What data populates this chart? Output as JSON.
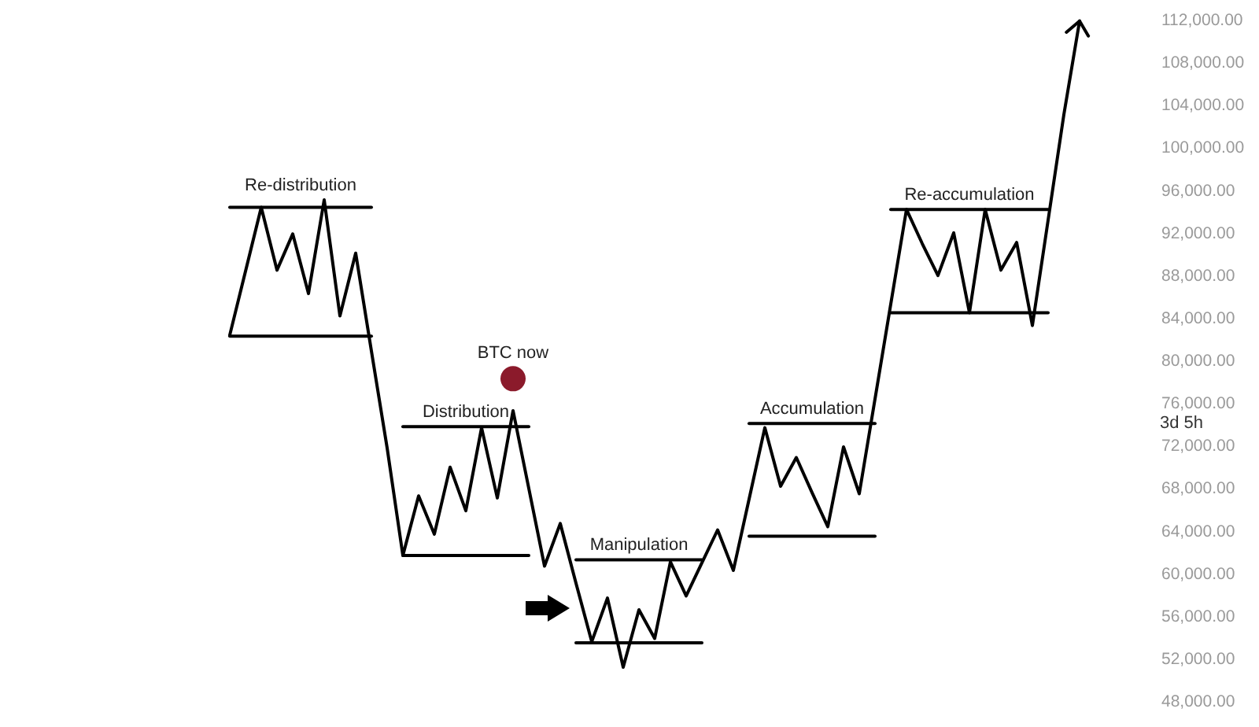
{
  "chart_data": {
    "type": "line",
    "categories": [
      null,
      null,
      null,
      null,
      null,
      null,
      null,
      null,
      null,
      null,
      null,
      null,
      null,
      null,
      null,
      null,
      null,
      null,
      null,
      null,
      null,
      null,
      null,
      null,
      null,
      null,
      null,
      null,
      null,
      null,
      null,
      null,
      null,
      null,
      null,
      null,
      null,
      null,
      null,
      null,
      null,
      null,
      null,
      null,
      null,
      null,
      null,
      null,
      null,
      null,
      null,
      null,
      null,
      null,
      null
    ],
    "series": [
      {
        "color": "#000000",
        "values": [
          82300,
          88300,
          94300,
          88400,
          91800,
          86200,
          95000,
          84100,
          90000,
          80800,
          71700,
          61600,
          67200,
          63600,
          69900,
          65800,
          73600,
          67000,
          75200,
          67900,
          60600,
          64600,
          59000,
          53500,
          57600,
          51100,
          56500,
          53800,
          61000,
          57800,
          60900,
          64000,
          60200,
          66900,
          73600,
          68100,
          70800,
          67500,
          64300,
          71800,
          67400,
          76300,
          85200,
          94100,
          90900,
          87900,
          91900,
          84400,
          94100,
          88400,
          91000,
          83200,
          93100,
          103000,
          111800
        ]
      },
      {
        "name": "Re-distribution",
        "color": "#000000",
        "values": [
          94300,
          94300,
          94300,
          94300,
          94300,
          94300,
          94300,
          94300,
          94300,
          94300,
          null,
          null,
          null,
          null,
          null,
          null,
          null,
          null,
          null,
          null,
          null,
          null,
          null,
          null,
          null,
          null,
          null,
          null,
          null,
          null,
          null,
          null,
          null,
          null,
          null,
          null,
          null,
          null,
          null,
          null,
          null,
          null,
          null,
          null,
          null,
          null,
          null,
          null,
          null,
          null,
          null,
          null,
          null,
          null,
          null
        ]
      },
      {
        "color": "#000000",
        "values": [
          82200,
          82200,
          82200,
          82200,
          82200,
          82200,
          82200,
          82200,
          82200,
          82200,
          null,
          null,
          null,
          null,
          null,
          null,
          null,
          null,
          null,
          null,
          null,
          null,
          null,
          null,
          null,
          null,
          null,
          null,
          null,
          null,
          null,
          null,
          null,
          null,
          null,
          null,
          null,
          null,
          null,
          null,
          null,
          null,
          null,
          null,
          null,
          null,
          null,
          null,
          null,
          null,
          null,
          null,
          null,
          null,
          null
        ]
      },
      {
        "name": "Distribution",
        "color": "#000000",
        "values": [
          null,
          null,
          null,
          null,
          null,
          null,
          null,
          null,
          null,
          null,
          null,
          73700,
          73700,
          73700,
          73700,
          73700,
          73700,
          73700,
          73700,
          73700,
          null,
          null,
          null,
          null,
          null,
          null,
          null,
          null,
          null,
          null,
          null,
          null,
          null,
          null,
          null,
          null,
          null,
          null,
          null,
          null,
          null,
          null,
          null,
          null,
          null,
          null,
          null,
          null,
          null,
          null,
          null,
          null,
          null,
          null,
          null
        ]
      },
      {
        "color": "#000000",
        "values": [
          null,
          null,
          null,
          null,
          null,
          null,
          null,
          null,
          null,
          null,
          null,
          61600,
          61600,
          61600,
          61600,
          61600,
          61600,
          61600,
          61600,
          61600,
          null,
          null,
          null,
          null,
          null,
          null,
          null,
          null,
          null,
          null,
          null,
          null,
          null,
          null,
          null,
          null,
          null,
          null,
          null,
          null,
          null,
          null,
          null,
          null,
          null,
          null,
          null,
          null,
          null,
          null,
          null,
          null,
          null,
          null,
          null
        ]
      },
      {
        "name": "Manipulation",
        "color": "#000000",
        "values": [
          null,
          null,
          null,
          null,
          null,
          null,
          null,
          null,
          null,
          null,
          null,
          null,
          null,
          null,
          null,
          null,
          null,
          null,
          null,
          null,
          null,
          null,
          61200,
          61200,
          61200,
          61200,
          61200,
          61200,
          61200,
          61200,
          61200,
          null,
          null,
          null,
          null,
          null,
          null,
          null,
          null,
          null,
          null,
          null,
          null,
          null,
          null,
          null,
          null,
          null,
          null,
          null,
          null,
          null,
          null,
          null,
          null
        ]
      },
      {
        "color": "#000000",
        "values": [
          null,
          null,
          null,
          null,
          null,
          null,
          null,
          null,
          null,
          null,
          null,
          null,
          null,
          null,
          null,
          null,
          null,
          null,
          null,
          null,
          null,
          null,
          53400,
          53400,
          53400,
          53400,
          53400,
          53400,
          53400,
          53400,
          53400,
          null,
          null,
          null,
          null,
          null,
          null,
          null,
          null,
          null,
          null,
          null,
          null,
          null,
          null,
          null,
          null,
          null,
          null,
          null,
          null,
          null,
          null,
          null,
          null
        ]
      },
      {
        "name": "Accumulation",
        "color": "#000000",
        "values": [
          null,
          null,
          null,
          null,
          null,
          null,
          null,
          null,
          null,
          null,
          null,
          null,
          null,
          null,
          null,
          null,
          null,
          null,
          null,
          null,
          null,
          null,
          null,
          null,
          null,
          null,
          null,
          null,
          null,
          null,
          null,
          null,
          null,
          74000,
          74000,
          74000,
          74000,
          74000,
          74000,
          74000,
          74000,
          74000,
          null,
          null,
          null,
          null,
          null,
          null,
          null,
          null,
          null,
          null,
          null,
          null,
          null
        ]
      },
      {
        "color": "#000000",
        "values": [
          null,
          null,
          null,
          null,
          null,
          null,
          null,
          null,
          null,
          null,
          null,
          null,
          null,
          null,
          null,
          null,
          null,
          null,
          null,
          null,
          null,
          null,
          null,
          null,
          null,
          null,
          null,
          null,
          null,
          null,
          null,
          null,
          null,
          63400,
          63400,
          63400,
          63400,
          63400,
          63400,
          63400,
          63400,
          63400,
          null,
          null,
          null,
          null,
          null,
          null,
          null,
          null,
          null,
          null,
          null,
          null,
          null
        ]
      },
      {
        "name": "Re-accumulation",
        "color": "#000000",
        "values": [
          null,
          null,
          null,
          null,
          null,
          null,
          null,
          null,
          null,
          null,
          null,
          null,
          null,
          null,
          null,
          null,
          null,
          null,
          null,
          null,
          null,
          null,
          null,
          null,
          null,
          null,
          null,
          null,
          null,
          null,
          null,
          null,
          null,
          null,
          null,
          null,
          null,
          null,
          null,
          null,
          null,
          null,
          94100,
          94100,
          94100,
          94100,
          94100,
          94100,
          94100,
          94100,
          94100,
          94100,
          94100,
          null,
          null
        ]
      },
      {
        "color": "#000000",
        "values": [
          null,
          null,
          null,
          null,
          null,
          null,
          null,
          null,
          null,
          null,
          null,
          null,
          null,
          null,
          null,
          null,
          null,
          null,
          null,
          null,
          null,
          null,
          null,
          null,
          null,
          null,
          null,
          null,
          null,
          null,
          null,
          null,
          null,
          null,
          null,
          null,
          null,
          null,
          null,
          null,
          null,
          null,
          84400,
          84400,
          84400,
          84400,
          84400,
          84400,
          84400,
          84400,
          84400,
          84400,
          84400,
          null,
          null
        ]
      },
      {
        "type": "scatter",
        "name": "BTC now",
        "color": "#8b1a2b",
        "marker": "circle",
        "values": [
          null,
          null,
          null,
          null,
          null,
          null,
          null,
          null,
          null,
          null,
          null,
          null,
          null,
          null,
          null,
          null,
          null,
          null,
          78200,
          null,
          null,
          null,
          null,
          null,
          null,
          null,
          null,
          null,
          null,
          null,
          null,
          null,
          null,
          null,
          null,
          null,
          null,
          null,
          null,
          null,
          null,
          null,
          null,
          null,
          null,
          null,
          null,
          null,
          null,
          null,
          null,
          null,
          null,
          null,
          null
        ]
      }
    ],
    "ylim": [
      48000,
      112000
    ],
    "yticks": [
      {
        "value": 48000,
        "label": "48,000.00"
      },
      {
        "value": 52000,
        "label": "52,000.00"
      },
      {
        "value": 56000,
        "label": "56,000.00"
      },
      {
        "value": 60000,
        "label": "60,000.00"
      },
      {
        "value": 64000,
        "label": "64,000.00"
      },
      {
        "value": 68000,
        "label": "68,000.00"
      },
      {
        "value": 72000,
        "label": "72,000.00"
      },
      {
        "value": 76000,
        "label": "76,000.00"
      },
      {
        "value": 80000,
        "label": "80,000.00"
      },
      {
        "value": 84000,
        "label": "84,000.00"
      },
      {
        "value": 88000,
        "label": "88,000.00"
      },
      {
        "value": 92000,
        "label": "92,000.00"
      },
      {
        "value": 96000,
        "label": "96,000.00"
      },
      {
        "value": 100000,
        "label": "100,000.00"
      },
      {
        "value": 104000,
        "label": "104,000.00"
      },
      {
        "value": 108000,
        "label": "108,000.00"
      },
      {
        "value": 112000,
        "label": "112,000.00"
      }
    ],
    "tick_labels": "y",
    "annotations": [
      "3d 5h"
    ]
  }
}
